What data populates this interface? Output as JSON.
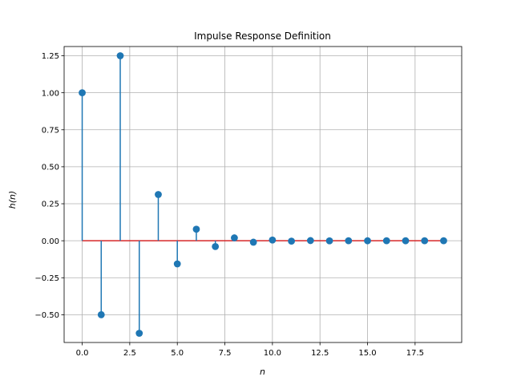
{
  "chart_data": {
    "type": "stem",
    "title": "Impulse Response Definition",
    "xlabel": "n",
    "ylabel": "h(n)",
    "xlim": [
      -0.95,
      19.95
    ],
    "ylim": [
      -0.6875,
      1.3125
    ],
    "xticks": [
      0.0,
      2.5,
      5.0,
      7.5,
      10.0,
      12.5,
      15.0,
      17.5
    ],
    "xtick_labels": [
      "0.0",
      "2.5",
      "5.0",
      "7.5",
      "10.0",
      "12.5",
      "15.0",
      "17.5"
    ],
    "yticks": [
      -0.5,
      -0.25,
      0.0,
      0.25,
      0.5,
      0.75,
      1.0,
      1.25
    ],
    "ytick_labels": [
      "−0.50",
      "−0.25",
      "0.00",
      "0.25",
      "0.50",
      "0.75",
      "1.00",
      "1.25"
    ],
    "grid": true,
    "colors": {
      "stem": "#1f77b4",
      "marker": "#1f77b4",
      "baseline": "#d62728",
      "grid": "#b0b0b0"
    },
    "x": [
      0,
      1,
      2,
      3,
      4,
      5,
      6,
      7,
      8,
      9,
      10,
      11,
      12,
      13,
      14,
      15,
      16,
      17,
      18,
      19
    ],
    "values": [
      1.0,
      -0.5,
      1.25,
      -0.625,
      0.3125,
      -0.15625,
      0.078125,
      -0.0390625,
      0.01953125,
      -0.009765625,
      0.0048828125,
      -0.00244140625,
      0.001220703125,
      -0.0006103515625,
      0.00030517578125,
      -0.000152587890625,
      7.62939453125e-05,
      -3.814697265625e-05,
      1.9073486328125e-05,
      -9.5367431640625e-06
    ]
  }
}
